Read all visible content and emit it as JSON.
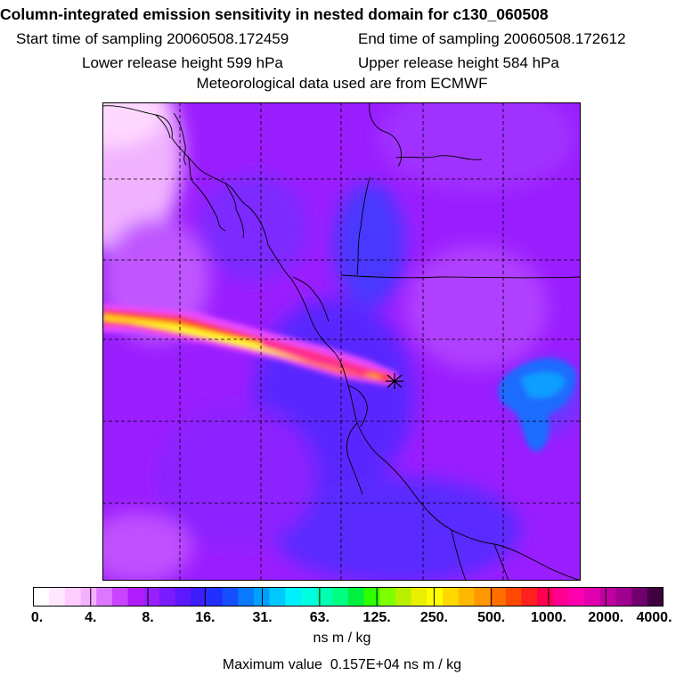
{
  "header": {
    "title": "Column-integrated emission sensitivity in nested domain for c130_060508",
    "start_label": "Start time of sampling 20060508.172459",
    "end_label": "End time of sampling 20060508.172612",
    "lower_label": "Lower release height  599 hPa",
    "upper_label": "Upper release height  584 hPa",
    "meteo_label": "Meteorological data used are from ECMWF"
  },
  "colorbar": {
    "ticks": [
      "0.",
      "4.",
      "8.",
      "16.",
      "31.",
      "63.",
      "125.",
      "250.",
      "500.",
      "1000.",
      "2000.",
      "4000."
    ],
    "units": "ns m / kg",
    "colors": [
      "#ffffff",
      "#ffe8ff",
      "#ffccff",
      "#f5b0ff",
      "#dd77ff",
      "#c844ff",
      "#b01cff",
      "#9820ff",
      "#7a1cff",
      "#5e18ff",
      "#3d1eff",
      "#2230ff",
      "#1450ff",
      "#0a78ff",
      "#00a0ff",
      "#00c8ff",
      "#00f0ff",
      "#00ffe0",
      "#00ffb0",
      "#00ff80",
      "#00f040",
      "#30ff00",
      "#80ff00",
      "#b8f000",
      "#e8f000",
      "#ffff00",
      "#ffd800",
      "#ffb800",
      "#ff9800",
      "#ff7000",
      "#ff4800",
      "#ff2020",
      "#ff0050",
      "#ff0090",
      "#ff00b0",
      "#e000b0",
      "#c000a0",
      "#a00090",
      "#700070",
      "#400040"
    ]
  },
  "footer": {
    "max_prefix": "Maximum value",
    "max_value": "0.157E+04",
    "max_units": "ns m / kg"
  },
  "map_colors": {
    "background": "#9a1eff",
    "low": "#f0b2ff",
    "blue": "#4a36ff",
    "plume_outer": "#f04cff",
    "plume_mid": "#ff2a40",
    "plume_core": "#ffff00"
  }
}
